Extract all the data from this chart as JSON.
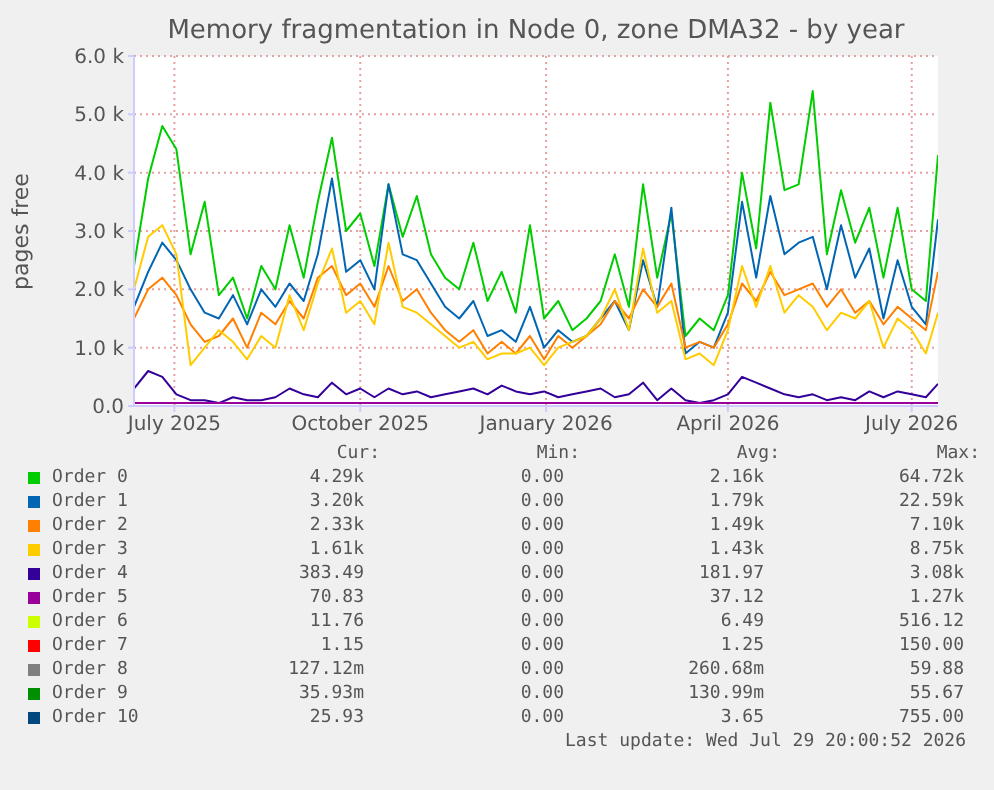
{
  "chart_data": {
    "type": "line",
    "title": "Memory fragmentation in Node 0, zone DMA32 - by year",
    "ylabel": "pages free",
    "x": [
      "2025-06-26",
      "2025-07-03",
      "2025-07-10",
      "2025-07-17",
      "2025-07-24",
      "2025-07-31",
      "2025-08-07",
      "2025-08-14",
      "2025-08-21",
      "2025-08-28",
      "2025-09-04",
      "2025-09-11",
      "2025-09-18",
      "2025-09-25",
      "2025-10-02",
      "2025-10-09",
      "2025-10-16",
      "2025-10-23",
      "2025-10-30",
      "2025-11-06",
      "2025-11-13",
      "2025-11-20",
      "2025-11-27",
      "2025-12-04",
      "2025-12-11",
      "2025-12-18",
      "2025-12-25",
      "2026-01-01",
      "2026-01-08",
      "2026-01-15",
      "2026-01-22",
      "2026-01-29",
      "2026-02-05",
      "2026-02-12",
      "2026-02-19",
      "2026-02-26",
      "2026-03-05",
      "2026-03-12",
      "2026-03-19",
      "2026-03-26",
      "2026-04-02",
      "2026-04-09",
      "2026-04-16",
      "2026-04-23",
      "2026-04-30",
      "2026-05-07",
      "2026-05-14",
      "2026-05-21",
      "2026-05-28",
      "2026-06-04",
      "2026-06-11",
      "2026-06-18",
      "2026-06-25",
      "2026-07-02",
      "2026-07-09",
      "2026-07-16",
      "2026-07-23",
      "2026-07-29"
    ],
    "series": [
      {
        "name": "Order 0",
        "color": "#00cc00",
        "values": [
          2400,
          3900,
          4800,
          4400,
          2600,
          3500,
          1900,
          2200,
          1500,
          2400,
          2000,
          3100,
          2200,
          3500,
          4600,
          3000,
          3300,
          2400,
          3800,
          2900,
          3600,
          2600,
          2200,
          2000,
          2800,
          1800,
          2300,
          1600,
          3100,
          1500,
          1800,
          1300,
          1500,
          1800,
          2600,
          1700,
          3800,
          2200,
          3300,
          1200,
          1500,
          1300,
          1900,
          4000,
          2700,
          5200,
          3700,
          3800,
          5400,
          2600,
          3700,
          2800,
          3400,
          2200,
          3400,
          2000,
          1800,
          4300
        ]
      },
      {
        "name": "Order 1",
        "color": "#0066b3",
        "values": [
          1700,
          2300,
          2800,
          2500,
          2000,
          1600,
          1500,
          1900,
          1400,
          2000,
          1700,
          2100,
          1800,
          2600,
          3900,
          2300,
          2500,
          2000,
          3800,
          2600,
          2500,
          2100,
          1700,
          1500,
          1800,
          1200,
          1300,
          1100,
          1700,
          1000,
          1300,
          1100,
          1200,
          1500,
          1800,
          1300,
          2500,
          1700,
          3400,
          900,
          1100,
          1000,
          1600,
          3500,
          2200,
          3600,
          2600,
          2800,
          2900,
          2000,
          3100,
          2200,
          2700,
          1500,
          2500,
          1700,
          1400,
          3200
        ]
      },
      {
        "name": "Order 2",
        "color": "#ff8000",
        "values": [
          1500,
          2000,
          2200,
          1900,
          1400,
          1100,
          1200,
          1500,
          1000,
          1600,
          1400,
          1800,
          1500,
          2200,
          2400,
          1900,
          2100,
          1700,
          2400,
          1800,
          2000,
          1600,
          1300,
          1100,
          1300,
          900,
          1100,
          900,
          1200,
          800,
          1200,
          1000,
          1200,
          1400,
          1800,
          1500,
          2000,
          1700,
          2100,
          1000,
          1100,
          1000,
          1400,
          2100,
          1800,
          2300,
          1900,
          2000,
          2100,
          1700,
          2000,
          1600,
          1800,
          1400,
          1700,
          1500,
          1300,
          2300
        ]
      },
      {
        "name": "Order 3",
        "color": "#ffcc00",
        "values": [
          2000,
          2900,
          3100,
          2600,
          700,
          1000,
          1300,
          1100,
          800,
          1200,
          1000,
          1900,
          1300,
          2100,
          2700,
          1600,
          1800,
          1400,
          2800,
          1700,
          1600,
          1400,
          1200,
          1000,
          1100,
          800,
          900,
          900,
          1000,
          700,
          1000,
          1100,
          1200,
          1500,
          2000,
          1300,
          2700,
          1600,
          1800,
          800,
          900,
          700,
          1300,
          2400,
          1700,
          2400,
          1600,
          1900,
          1700,
          1300,
          1600,
          1500,
          1800,
          1000,
          1500,
          1300,
          900,
          1600
        ]
      },
      {
        "name": "Order 4",
        "color": "#330099",
        "values": [
          300,
          600,
          500,
          200,
          100,
          100,
          50,
          150,
          100,
          100,
          150,
          300,
          200,
          150,
          400,
          200,
          300,
          150,
          300,
          200,
          250,
          150,
          200,
          250,
          300,
          200,
          350,
          250,
          200,
          250,
          150,
          200,
          250,
          300,
          150,
          200,
          400,
          100,
          300,
          100,
          50,
          100,
          200,
          500,
          400,
          300,
          200,
          150,
          200,
          100,
          150,
          100,
          250,
          150,
          250,
          200,
          150,
          380
        ]
      },
      {
        "name": "Order 5",
        "color": "#990099",
        "x": [
          "2025-06-26",
          "2025-08-28",
          "2025-10-30",
          "2026-01-01",
          "2026-03-05",
          "2026-05-07",
          "2026-07-02",
          "2026-07-29"
        ],
        "values": [
          50,
          50,
          50,
          50,
          50,
          50,
          50,
          50
        ]
      },
      {
        "name": "Order 6",
        "color": "#ccff00",
        "values": [
          null,
          null,
          null,
          null,
          null,
          null,
          null,
          null,
          null,
          null,
          null,
          null,
          null,
          null,
          null,
          null,
          null,
          null,
          null,
          null,
          null,
          null,
          null,
          null,
          null,
          null,
          null,
          null,
          null,
          null,
          null,
          null,
          null,
          null,
          null,
          null,
          null,
          null,
          null,
          null,
          null,
          null,
          null,
          null,
          null,
          null,
          null,
          null,
          null,
          null,
          null,
          null,
          null,
          null,
          null,
          null,
          null,
          null
        ]
      },
      {
        "name": "Order 7",
        "color": "#ff0000",
        "values": [
          null,
          null,
          null,
          null,
          null,
          null,
          null,
          null,
          null,
          null,
          null,
          null,
          null,
          null,
          null,
          null,
          null,
          null,
          null,
          null,
          null,
          null,
          null,
          null,
          null,
          null,
          null,
          null,
          null,
          null,
          null,
          null,
          null,
          null,
          null,
          null,
          null,
          null,
          null,
          null,
          null,
          null,
          null,
          null,
          null,
          null,
          null,
          null,
          null,
          null,
          null,
          null,
          null,
          null,
          null,
          null,
          null,
          null
        ]
      },
      {
        "name": "Order 8",
        "color": "#808080",
        "values": [
          null,
          null,
          null,
          null,
          null,
          null,
          null,
          null,
          null,
          null,
          null,
          null,
          null,
          null,
          null,
          null,
          null,
          null,
          null,
          null,
          null,
          null,
          null,
          null,
          null,
          null,
          null,
          null,
          null,
          null,
          null,
          null,
          null,
          null,
          null,
          null,
          null,
          null,
          null,
          null,
          null,
          null,
          null,
          null,
          null,
          null,
          null,
          null,
          null,
          null,
          null,
          null,
          null,
          null,
          null,
          null,
          null,
          null
        ]
      },
      {
        "name": "Order 9",
        "color": "#008f00",
        "values": [
          null,
          null,
          null,
          null,
          null,
          null,
          null,
          null,
          null,
          null,
          null,
          null,
          null,
          null,
          null,
          null,
          null,
          null,
          null,
          null,
          null,
          null,
          null,
          null,
          null,
          null,
          null,
          null,
          null,
          null,
          null,
          null,
          null,
          null,
          null,
          null,
          null,
          null,
          null,
          null,
          null,
          null,
          null,
          null,
          null,
          null,
          null,
          null,
          null,
          null,
          null,
          null,
          null,
          null,
          null,
          null,
          null,
          null
        ]
      },
      {
        "name": "Order 10",
        "color": "#00487d",
        "values": [
          null,
          null,
          null,
          null,
          null,
          null,
          null,
          null,
          null,
          null,
          null,
          null,
          null,
          null,
          null,
          null,
          null,
          null,
          null,
          null,
          null,
          null,
          null,
          null,
          null,
          null,
          null,
          null,
          null,
          null,
          null,
          null,
          null,
          null,
          null,
          null,
          null,
          null,
          null,
          null,
          null,
          null,
          null,
          null,
          null,
          null,
          null,
          null,
          null,
          null,
          null,
          null,
          null,
          null,
          null,
          null,
          null,
          null
        ]
      }
    ],
    "xlim": [
      "2025-06-26",
      "2026-07-29"
    ],
    "xticks": [
      {
        "value": "2025-07-16",
        "label": "July 2025"
      },
      {
        "value": "2025-10-16",
        "label": "October 2025"
      },
      {
        "value": "2026-01-16",
        "label": "January 2026"
      },
      {
        "value": "2026-04-16",
        "label": "April 2026"
      },
      {
        "value": "2026-07-16",
        "label": "July 2026"
      }
    ],
    "ylim": [
      0,
      6000
    ],
    "yticks": [
      {
        "value": 0,
        "label": "0.0"
      },
      {
        "value": 1000,
        "label": "1.0 k"
      },
      {
        "value": 2000,
        "label": "2.0 k"
      },
      {
        "value": 3000,
        "label": "3.0 k"
      },
      {
        "value": 4000,
        "label": "4.0 k"
      },
      {
        "value": 5000,
        "label": "5.0 k"
      },
      {
        "value": 6000,
        "label": "6.0 k"
      }
    ],
    "grid": true,
    "legend": "bottom",
    "marker": "none",
    "line_style": "solid",
    "annotations": [
      "Cur:",
      "Min:",
      "Avg:",
      "Max:",
      "4.29k",
      "0.00",
      "2.16k",
      "64.72k",
      "3.20k",
      "0.00",
      "1.79k",
      "22.59k",
      "2.33k",
      "0.00",
      "1.49k",
      "7.10k",
      "1.61k",
      "0.00",
      "1.43k",
      "8.75k",
      "383.49",
      "0.00",
      "181.97",
      "3.08k",
      "70.83",
      "0.00",
      "37.12",
      "1.27k",
      "11.76",
      "0.00",
      "6.49",
      "516.12",
      "1.15",
      "0.00",
      "1.25",
      "150.00",
      "127.12m",
      "0.00",
      "260.68m",
      "59.88",
      "35.93m",
      "0.00",
      "130.99m",
      "55.67",
      "25.93",
      "0.00",
      "3.65",
      "755.00",
      "Last update: Wed Jul 29 20:00:52 2026"
    ]
  }
}
